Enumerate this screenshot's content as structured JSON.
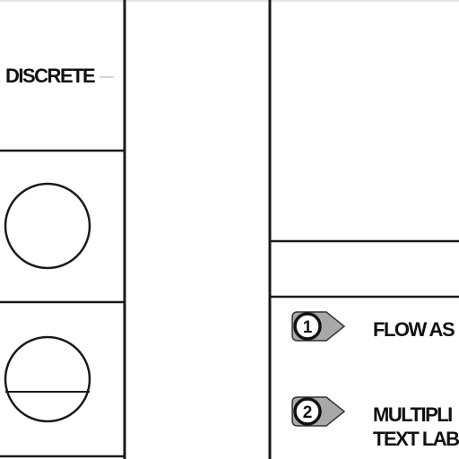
{
  "legend": {
    "discrete_label": "DISCRETE",
    "symbols": [
      {
        "kind": "circle",
        "icon": "circle-icon"
      },
      {
        "kind": "circle-with-horizontal-bar",
        "icon": "circle-divided-icon"
      }
    ]
  },
  "notes": [
    {
      "number": "1",
      "lines": [
        "FLOW AS"
      ]
    },
    {
      "number": "2",
      "lines": [
        "MULTIPLI",
        "TEXT LAB"
      ]
    }
  ],
  "colors": {
    "line": "#1a1a1a",
    "tag_fill": "#a8a8a8",
    "text": "#111111"
  }
}
